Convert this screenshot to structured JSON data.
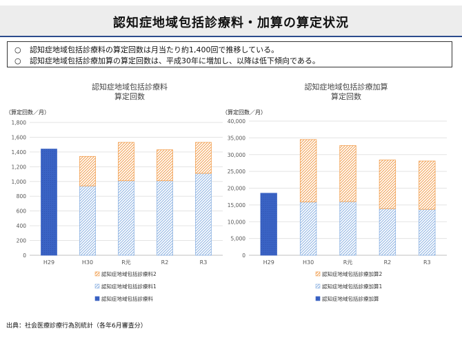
{
  "header": {
    "title": "認知症地域包括診療料・加算の算定状況"
  },
  "summary": {
    "bullet_mark": "○",
    "lines": [
      "認知症地域包括診療料の算定回数は月当たり約1,400回で推移している。",
      "認知症地域包括診療加算の算定回数は、平成30年に増加し、以降は低下傾向である。"
    ]
  },
  "colors": {
    "solid": "#3a63c4",
    "stripe_blue": "#8fb4e3",
    "stripe_orange": "#f2a052",
    "title_rule": "#2b4b8c"
  },
  "chart_data": [
    {
      "type": "bar",
      "stacked": true,
      "title": "認知症地域包括診療料\n算定回数",
      "ylabel": "（算定回数／月）",
      "categories": [
        "H29",
        "H30",
        "R元",
        "R2",
        "R3"
      ],
      "ylim": [
        0,
        1800
      ],
      "yticks": [
        0,
        200,
        400,
        600,
        800,
        1000,
        1200,
        1400,
        1600,
        1800
      ],
      "ytick_labels": [
        "0",
        "200",
        "400",
        "600",
        "800",
        "1,000",
        "1,200",
        "1,400",
        "1,600",
        "1,800"
      ],
      "grid": true,
      "series": [
        {
          "name": "認知症地域包括診療料",
          "style": "solid",
          "values": [
            1440,
            0,
            0,
            0,
            0
          ]
        },
        {
          "name": "認知症地域包括診療料1",
          "style": "stripe_blue",
          "values": [
            0,
            940,
            1010,
            1010,
            1110
          ]
        },
        {
          "name": "認知症地域包括診療料2",
          "style": "stripe_orange",
          "values": [
            0,
            400,
            520,
            420,
            420
          ]
        }
      ],
      "legend_order": [
        2,
        1,
        0
      ],
      "legend_position": "bottom"
    },
    {
      "type": "bar",
      "stacked": true,
      "title": "認知症地域包括診療加算\n算定回数",
      "ylabel": "（算定回数／月）",
      "categories": [
        "H29",
        "H30",
        "R元",
        "R2",
        "R3"
      ],
      "ylim": [
        0,
        40000
      ],
      "yticks": [
        0,
        5000,
        10000,
        15000,
        20000,
        25000,
        30000,
        35000,
        40000
      ],
      "ytick_labels": [
        "0",
        "5,000",
        "10,000",
        "15,000",
        "20,000",
        "25,000",
        "30,000",
        "35,000",
        "40,000"
      ],
      "grid": true,
      "series": [
        {
          "name": "認知症地域包括診療加算",
          "style": "solid",
          "values": [
            18500,
            0,
            0,
            0,
            0
          ]
        },
        {
          "name": "認知症地域包括診療加算1",
          "style": "stripe_blue",
          "values": [
            0,
            15900,
            16000,
            13900,
            13700
          ]
        },
        {
          "name": "認知症地域包括診療加算2",
          "style": "stripe_orange",
          "values": [
            0,
            18600,
            16700,
            14500,
            14400
          ]
        }
      ],
      "legend_order": [
        2,
        1,
        0
      ],
      "legend_position": "bottom"
    }
  ],
  "footer": {
    "source": "出典：社会医療診療行為別統計（各年6月審査分）"
  }
}
